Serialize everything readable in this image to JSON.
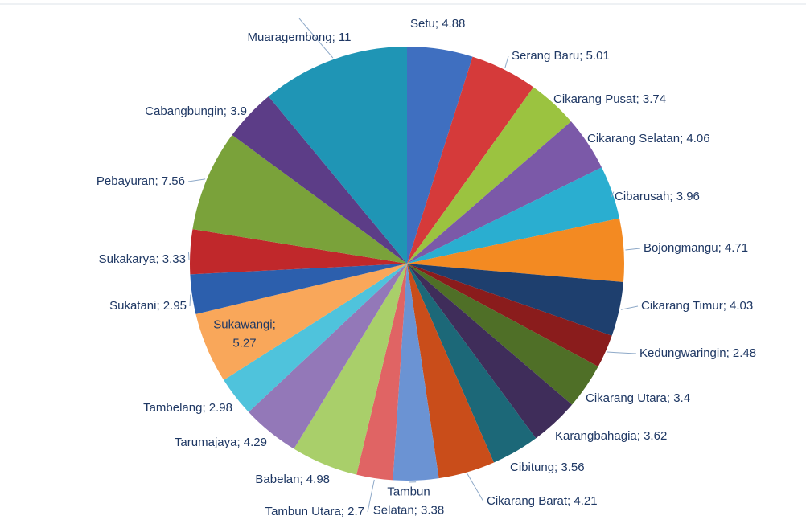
{
  "chart_data": {
    "type": "pie",
    "values": [
      4.88,
      5.01,
      3.74,
      4.06,
      3.96,
      4.71,
      4.03,
      2.48,
      3.4,
      3.62,
      3.56,
      4.21,
      3.38,
      2.7,
      4.98,
      4.29,
      2.98,
      5.27,
      2.95,
      3.33,
      7.56,
      3.9,
      11
    ],
    "value_labels": [
      "Setu; 4.88",
      "Serang Baru; 5.01",
      "Cikarang Pusat; 3.74",
      "Cikarang Selatan; 4.06",
      "Cibarusah; 3.96",
      "Bojongmangu; 4.71",
      "Cikarang Timur; 4.03",
      "Kedungwaringin; 2.48",
      "Cikarang Utara; 3.4",
      "Karangbahagia; 3.62",
      "Cibitung; 3.56",
      "Cikarang Barat; 4.21",
      "Tambun\nSelatan; 3.38",
      "Tambun Utara; 2.7",
      "Babelan; 4.98",
      "Tarumajaya; 4.29",
      "Tambelang; 2.98",
      "Sukawangi;\n5.27",
      "Sukatani; 2.95",
      "Sukakarya; 3.33",
      "Pebayuran; 7.56",
      "Cabangbungin; 3.9",
      "Muaragembong; 11"
    ],
    "colors": [
      "#3f6fc0",
      "#d53a3a",
      "#9bc340",
      "#7b59a8",
      "#2aaed0",
      "#f38a22",
      "#1e3f6e",
      "#8a1c1c",
      "#4f6f27",
      "#3f2d5a",
      "#1c6878",
      "#c94d1a",
      "#6b93d3",
      "#e06464",
      "#a9cf6a",
      "#9378b8",
      "#4fc3dc",
      "#f9a75a",
      "#2c5fad",
      "#c0282b",
      "#7aa23a",
      "#5c3d87",
      "#1f95b5"
    ]
  }
}
